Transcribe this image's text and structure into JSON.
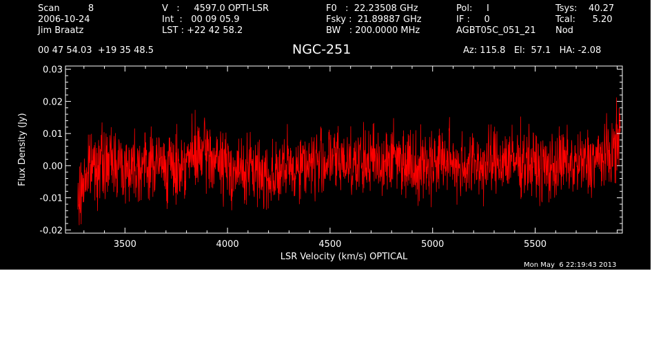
{
  "header": {
    "col1": [
      "Scan          8",
      "2006-10-24",
      "Jim Braatz"
    ],
    "col2": [
      "V   :     4597.0 OPTI-LSR",
      "Int  :   00 09 05.9",
      "LST : +22 42 58.2"
    ],
    "col3": [
      "F0   :  22.23508 GHz",
      "Fsky :  21.89887 GHz",
      "BW   : 200.0000 MHz"
    ],
    "col4": [
      "Pol:     I",
      "IF :     0",
      "AGBT05C_051_21"
    ],
    "col5": [
      "Tsys:    40.27",
      "Tcal:      5.20",
      "Nod"
    ],
    "coords": "00 47 54.03  +19 35 48.5",
    "source": "NGC-251",
    "azelha": "Az: 115.8   El:  57.1   HA: -2.08",
    "timestamp": "Mon May  6 22:19:43 2013"
  },
  "chart_data": {
    "type": "line",
    "title": "NGC-251",
    "xlabel": "LSR Velocity (km/s) OPTICAL",
    "ylabel": "Flux Density (Jy)",
    "xlim": [
      3210,
      5925
    ],
    "ylim": [
      -0.021,
      0.031
    ],
    "xticks": [
      3500,
      4000,
      4500,
      5000,
      5500
    ],
    "xtick_labels": [
      "3500",
      "4000",
      "4500",
      "5000",
      "5500"
    ],
    "yticks": [
      -0.02,
      -0.01,
      0.0,
      0.01,
      0.02,
      0.03
    ],
    "ytick_labels": [
      "-0.02",
      "-0.01",
      "0.00",
      "0.01",
      "0.02",
      "0.03"
    ],
    "series": [
      {
        "color": "#ff0000",
        "description": "noise-dominated spectrum, baseline near 0.00 Jy, peak-to-peak roughly -0.02 to +0.02 Jy",
        "x": [
          3270,
          3300,
          3350,
          3400,
          3450,
          3500,
          3550,
          3600,
          3650,
          3700,
          3750,
          3800,
          3850,
          3900,
          3950,
          4000,
          4050,
          4100,
          4150,
          4200,
          4250,
          4300,
          4350,
          4400,
          4450,
          4500,
          4550,
          4600,
          4650,
          4700,
          4750,
          4800,
          4850,
          4900,
          4950,
          5000,
          5050,
          5100,
          5150,
          5200,
          5250,
          5300,
          5350,
          5400,
          5450,
          5500,
          5550,
          5600,
          5650,
          5700,
          5750,
          5800,
          5850,
          5880,
          5900,
          5915
        ],
        "y": [
          -0.013,
          -0.004,
          0.001,
          0.0,
          0.002,
          -0.001,
          0.001,
          0.0,
          0.001,
          0.0,
          -0.001,
          0.002,
          0.003,
          0.004,
          0.001,
          0.0,
          -0.002,
          -0.001,
          -0.002,
          -0.003,
          -0.002,
          -0.001,
          0.0,
          0.001,
          0.001,
          0.002,
          0.001,
          0.002,
          0.0,
          0.002,
          0.001,
          0.003,
          0.002,
          0.001,
          0.0,
          0.001,
          0.002,
          0.001,
          0.0,
          0.001,
          0.0,
          0.001,
          0.002,
          0.001,
          0.002,
          0.0,
          -0.001,
          0.0,
          0.001,
          0.0,
          0.001,
          0.002,
          0.003,
          0.004,
          0.008,
          0.01
        ]
      }
    ],
    "grid": false,
    "legend": "none"
  }
}
